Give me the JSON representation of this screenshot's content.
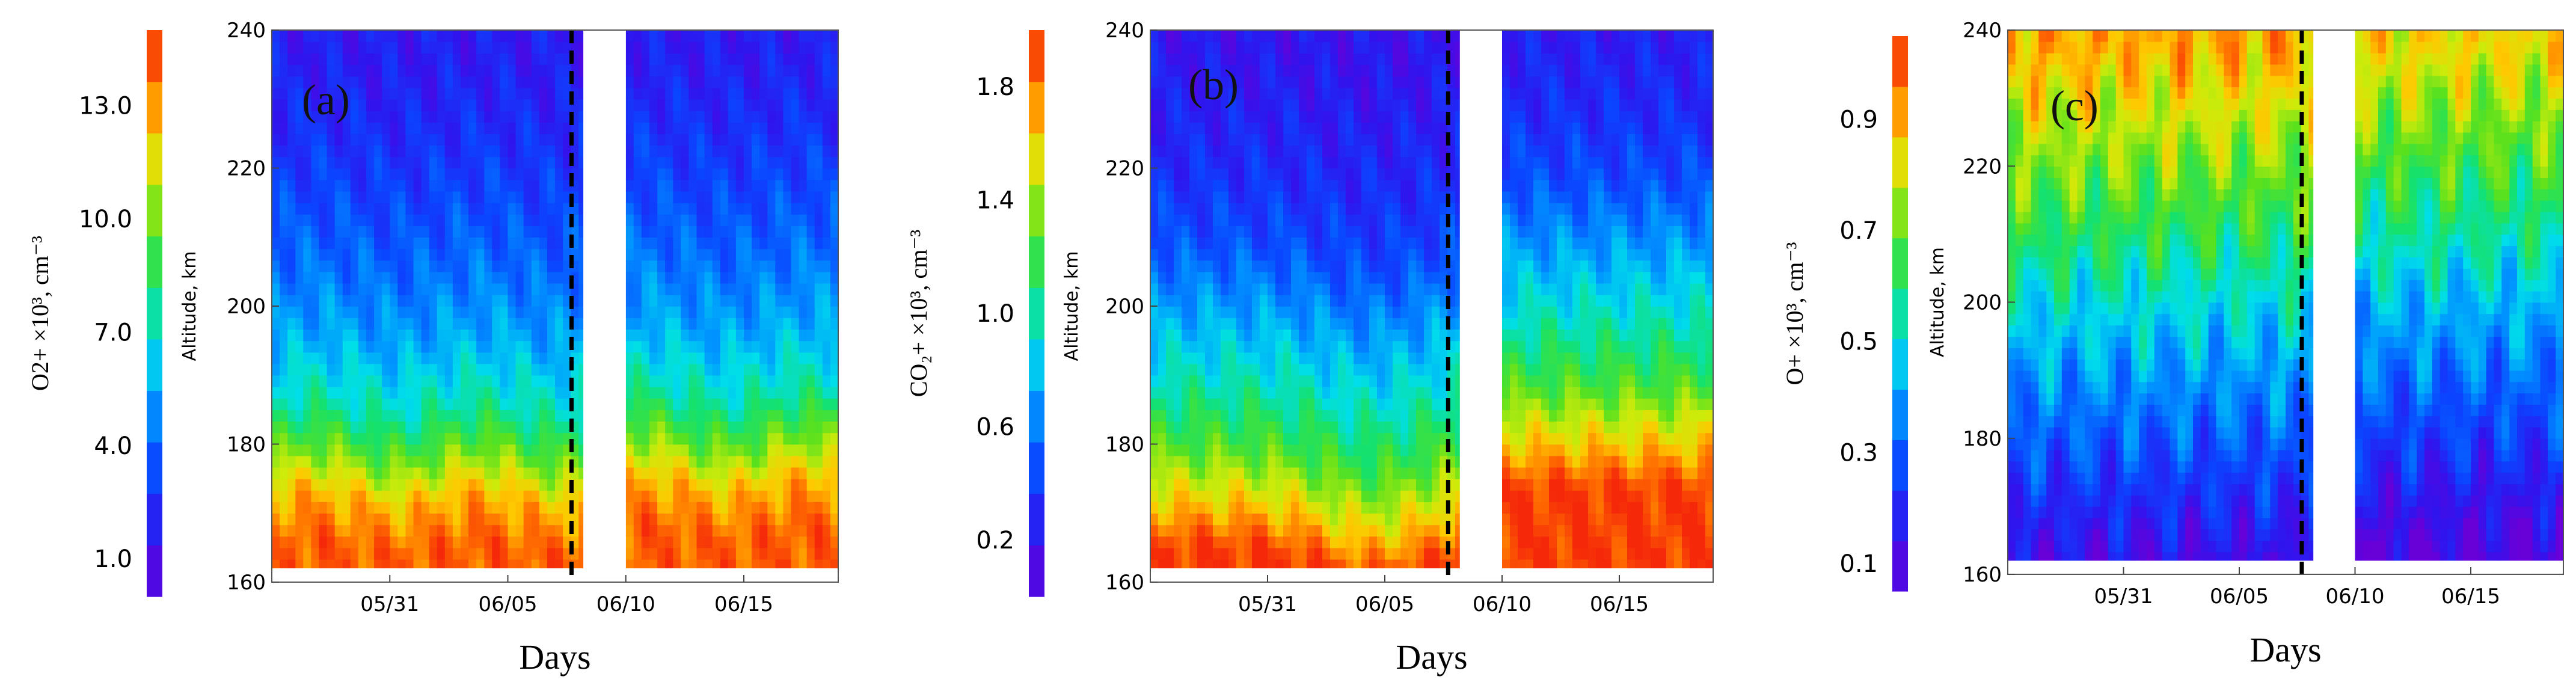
{
  "chart_data": [
    {
      "type": "heatmap",
      "label": "(a)",
      "xlabel": "Days",
      "ylabel": "Altitude, km",
      "colorbar_label": "O2+ ×10³, cm⁻³",
      "colorbar_ticks": [
        "1.0",
        "4.0",
        "7.0",
        "10.0",
        "13.0"
      ],
      "colorbar_range": [
        0,
        15
      ],
      "x_ticks": [
        "05/31",
        "06/05",
        "06/10",
        "06/15"
      ],
      "y_ticks": [
        "160",
        "180",
        "200",
        "220",
        "240"
      ],
      "ylim": [
        160,
        240
      ],
      "x_range_days": [
        0,
        24
      ],
      "x_tick_days": [
        5,
        10,
        15,
        20
      ],
      "event_day": 12.7,
      "gap_days": [
        13.2,
        15.0
      ],
      "floor_altitude_km": 162,
      "profile_altitudes_km": [
        165,
        172,
        178,
        185,
        195,
        205,
        215,
        225,
        235
      ],
      "profile_values": [
        14.0,
        12.5,
        10.0,
        7.5,
        5.5,
        4.2,
        3.2,
        2.4,
        1.8
      ]
    },
    {
      "type": "heatmap",
      "label": "(b)",
      "xlabel": "Days",
      "ylabel": "Altitude, km",
      "colorbar_label": "CO₂+ ×10³, cm⁻³",
      "colorbar_ticks": [
        "0.2",
        "0.6",
        "1.0",
        "1.4",
        "1.8"
      ],
      "colorbar_range": [
        0,
        2.0
      ],
      "x_ticks": [
        "05/31",
        "06/05",
        "06/10",
        "06/15"
      ],
      "y_ticks": [
        "160",
        "180",
        "200",
        "220",
        "240"
      ],
      "ylim": [
        160,
        240
      ],
      "x_range_days": [
        0,
        24
      ],
      "x_tick_days": [
        5,
        10,
        15,
        20
      ],
      "event_day": 12.7,
      "gap_days": [
        13.2,
        15.0
      ],
      "floor_altitude_km": 162,
      "profile_altitudes_km": [
        165,
        172,
        180,
        190,
        200,
        210,
        220,
        230,
        238
      ],
      "profile_values": [
        1.95,
        1.6,
        1.25,
        0.95,
        0.7,
        0.45,
        0.32,
        0.25,
        0.2
      ]
    },
    {
      "type": "heatmap",
      "label": "(c)",
      "xlabel": "Days",
      "ylabel": "Altitude, km",
      "colorbar_label": "O+ ×10³, cm⁻³",
      "colorbar_ticks": [
        "0.1",
        "0.3",
        "0.5",
        "0.7",
        "0.9"
      ],
      "colorbar_range": [
        0.05,
        1.05
      ],
      "x_ticks": [
        "05/31",
        "06/05",
        "06/10",
        "06/15"
      ],
      "y_ticks": [
        "160",
        "180",
        "200",
        "220",
        "240"
      ],
      "ylim": [
        160,
        240
      ],
      "x_range_days": [
        0,
        24
      ],
      "x_tick_days": [
        5,
        10,
        15,
        20
      ],
      "event_day": 12.7,
      "gap_days": [
        13.2,
        15.0
      ],
      "floor_altitude_km": 162,
      "profile_altitudes_km": [
        162,
        170,
        180,
        190,
        200,
        210,
        220,
        230,
        238
      ],
      "profile_values": [
        0.12,
        0.2,
        0.3,
        0.4,
        0.5,
        0.62,
        0.72,
        0.82,
        0.9
      ]
    }
  ]
}
